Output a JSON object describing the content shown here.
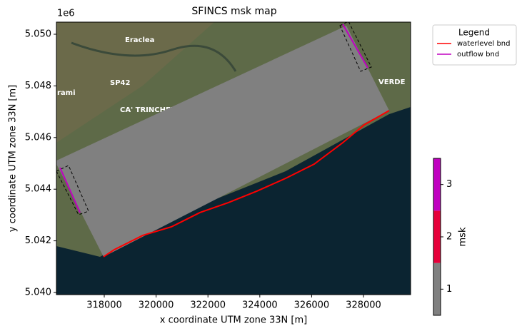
{
  "chart_data": {
    "type": "map",
    "title": "SFINCS msk map",
    "xlabel": "x coordinate UTM zone 33N [m]",
    "ylabel": "y coordinate UTM zone 33N [m]",
    "y_offset_label": "1e6",
    "xlim": [
      316154,
      329818
    ],
    "ylim": [
      5039917,
      5050470
    ],
    "xticks": [
      318000,
      320000,
      322000,
      324000,
      326000,
      328000
    ],
    "yticks": [
      {
        "value": 5040000,
        "label": "5.040"
      },
      {
        "value": 5042000,
        "label": "5.042"
      },
      {
        "value": 5044000,
        "label": "5.044"
      },
      {
        "value": 5046000,
        "label": "5.046"
      },
      {
        "value": 5048000,
        "label": "5.048"
      },
      {
        "value": 5050000,
        "label": "5.050"
      }
    ],
    "mask_area": {
      "color": "#808080",
      "x": [
        316099,
        327339,
        328991,
        317972
      ],
      "y": [
        5045083,
        5050332,
        5047045,
        5041382
      ]
    },
    "series": [
      {
        "name": "waterlevel bnd",
        "color": "#ff0000",
        "x": [
          317972,
          318385,
          319487,
          320589,
          321691,
          322793,
          323895,
          324997,
          326099,
          327201,
          328027,
          328991
        ],
        "y": [
          5041382,
          5041658,
          5042211,
          5042542,
          5043095,
          5043484,
          5043928,
          5044420,
          5044972,
          5045801,
          5046492,
          5047045
        ]
      },
      {
        "name": "outflow bnd",
        "color": "#c000c0",
        "x": [
          316292,
          317063,
          null,
          327201,
          328165
        ],
        "y": [
          5044835,
          5043094,
          null,
          5050387,
          5048702
        ]
      }
    ],
    "outflow_regions": [
      {
        "x": [
          316154,
          316622,
          317394,
          317008
        ],
        "y": [
          5044697,
          5044917,
          5043149,
          5043011
        ]
      },
      {
        "x": [
          327091,
          327421,
          328303,
          327890
        ],
        "y": [
          5050332,
          5050498,
          5048730,
          5048564
        ]
      }
    ],
    "legend": {
      "title": "Legend",
      "position": "outside upper right"
    },
    "colorbar": {
      "label": "msk",
      "values": [
        1,
        2,
        3
      ],
      "colors": [
        "#808080",
        "#e6003a",
        "#c000c0"
      ],
      "lim": [
        0.5,
        3.5
      ],
      "ticks": [
        1,
        2,
        3
      ]
    },
    "map_labels": [
      "Eraclea",
      "SP42",
      "CA' TRINCHET",
      "rami",
      "VERDE"
    ]
  }
}
